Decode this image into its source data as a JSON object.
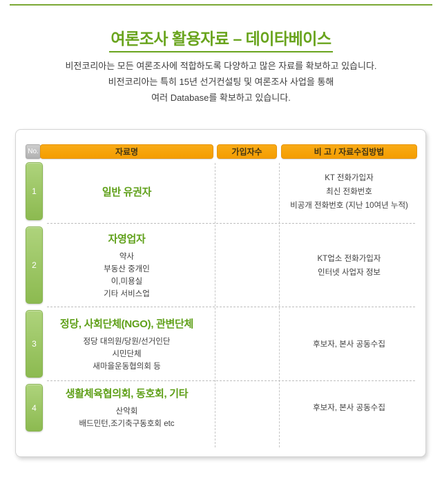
{
  "page": {
    "title": "여론조사 활용자료 – 데이타베이스",
    "description": [
      "비전코리아는 모든 여론조사에 적합하도록 다양하고 많은 자료를 확보하고 있습니다.",
      "비전코리아는 특히 15년 선거컨설팅 및 여론조사 사업을 통해",
      "여러 Database를 확보하고 있습니다."
    ]
  },
  "colors": {
    "accent_green": "#69a41d",
    "top_rule_green": "#7ba835",
    "header_orange": "#f6a10b",
    "badge_green": "#9ac863",
    "badge_gray": "#bcbcbc",
    "row_title_green": "#5fa019",
    "body_text": "#3e3e3e"
  },
  "table": {
    "headers": {
      "no": "No.",
      "name": "자료명",
      "subscribers": "가입자수",
      "note": "비 고 / 자료수집방법"
    },
    "rows": [
      {
        "no": "1",
        "title": "일반 유권자",
        "items": [],
        "subscribers": "",
        "notes": [
          "KT 전화가입자",
          "최신 전화번호",
          "비공개 전화번호 (지난 10여년 누적)"
        ]
      },
      {
        "no": "2",
        "title": "자영업자",
        "items": [
          "약사",
          "부동산 중개인",
          "이,미용실",
          "기타 서비스업"
        ],
        "subscribers": "",
        "notes": [
          "KT업소 전화가입자",
          "인터넷 사업자 정보"
        ]
      },
      {
        "no": "3",
        "title": "정당, 사회단체(NGO), 관변단체",
        "items": [
          "정당 대의원/당원/선거인단",
          "시민단체",
          "새마을운동협의회 등"
        ],
        "subscribers": "",
        "notes": [
          "후보자, 본사 공동수집"
        ]
      },
      {
        "no": "4",
        "title": "생활체육협의회, 동호회, 기타",
        "items": [
          "산악회",
          "배드민턴,조기축구동호회 etc"
        ],
        "subscribers": "",
        "notes": [
          "후보자, 본사 공동수집"
        ]
      }
    ]
  }
}
